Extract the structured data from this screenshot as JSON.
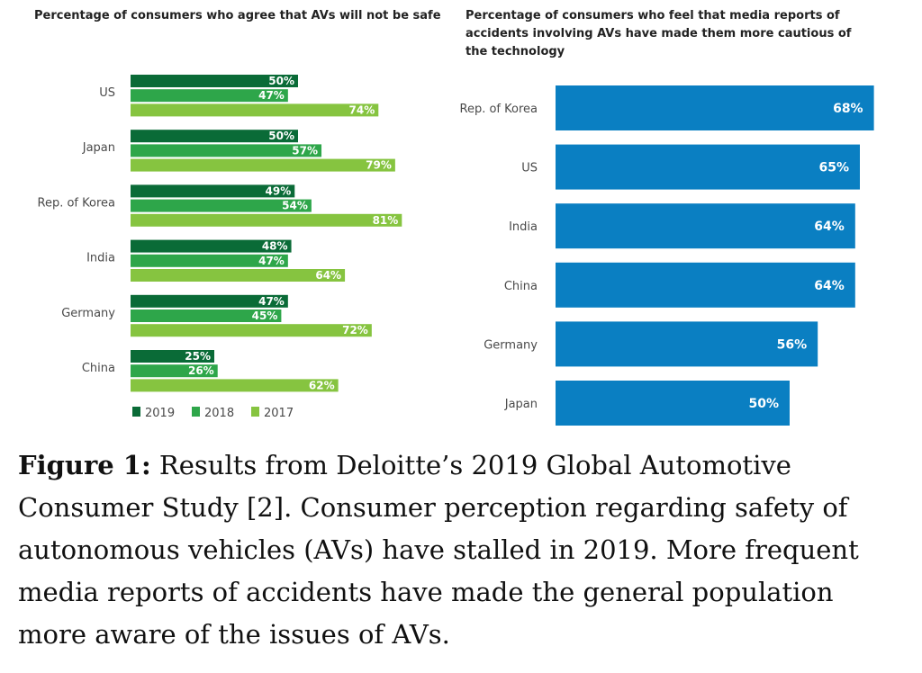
{
  "chart_data": [
    {
      "type": "bar",
      "orientation": "horizontal",
      "title": "Percentage of consumers who agree that AVs will not be safe",
      "categories": [
        "US",
        "Japan",
        "Rep. of Korea",
        "India",
        "Germany",
        "China"
      ],
      "series": [
        {
          "name": "2019",
          "color": "#0a6b37",
          "values": [
            50,
            50,
            49,
            48,
            47,
            25
          ]
        },
        {
          "name": "2018",
          "color": "#2ea64a",
          "values": [
            47,
            57,
            54,
            47,
            45,
            26
          ]
        },
        {
          "name": "2017",
          "color": "#86c440",
          "values": [
            74,
            79,
            81,
            64,
            72,
            62
          ]
        }
      ],
      "value_suffix": "%",
      "xlim": [
        0,
        100
      ],
      "legend": "bottom-left"
    },
    {
      "type": "bar",
      "orientation": "horizontal",
      "title": "Percentage of consumers who feel that media reports of accidents involving AVs have made them more cautious of the technology",
      "categories": [
        "Rep. of Korea",
        "US",
        "India",
        "China",
        "Germany",
        "Japan"
      ],
      "series": [
        {
          "name": "cautious",
          "color": "#0a7fc2",
          "values": [
            68,
            65,
            64,
            64,
            56,
            50
          ]
        }
      ],
      "value_suffix": "%",
      "xlim": [
        0,
        68
      ]
    }
  ],
  "caption": {
    "label": "Figure 1:",
    "text": " Results from Deloitte’s 2019 Global Automotive Consumer Study [2]. Consumer perception regarding safety of autonomous vehicles (AVs) have stalled in 2019. More frequent media reports of accidents have made the general population more aware of the issues of AVs."
  }
}
